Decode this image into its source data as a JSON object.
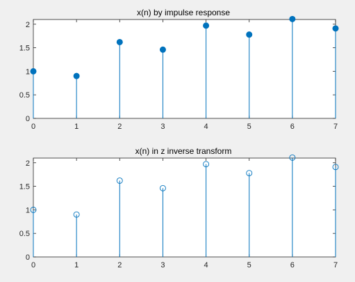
{
  "figure": {
    "background": "#f0f0f0",
    "axes_background": "#ffffff",
    "stem_color": "#0072bd",
    "axis_color": "#262626"
  },
  "chart_data": [
    {
      "type": "stem",
      "title": "x(n) by  impulse response",
      "marker": "filled-circle",
      "x": [
        0,
        1,
        2,
        3,
        4,
        5,
        6,
        7
      ],
      "y": [
        1.0,
        0.9,
        1.62,
        1.46,
        1.97,
        1.78,
        2.11,
        1.91
      ],
      "xlim": [
        0,
        7
      ],
      "ylim": [
        0,
        2.1
      ],
      "xticks": [
        "0",
        "1",
        "2",
        "3",
        "4",
        "5",
        "6",
        "7"
      ],
      "yticks": [
        "0",
        "0.5",
        "1",
        "1.5",
        "2"
      ],
      "ytick_values": [
        0,
        0.5,
        1,
        1.5,
        2
      ],
      "grid": false
    },
    {
      "type": "stem",
      "title": "x(n) in z inverse transform",
      "marker": "open-circle",
      "x": [
        0,
        1,
        2,
        3,
        4,
        5,
        6,
        7
      ],
      "y": [
        1.0,
        0.9,
        1.62,
        1.46,
        1.97,
        1.78,
        2.11,
        1.91
      ],
      "xlim": [
        0,
        7
      ],
      "ylim": [
        0,
        2.1
      ],
      "xticks": [
        "0",
        "1",
        "2",
        "3",
        "4",
        "5",
        "6",
        "7"
      ],
      "yticks": [
        "0",
        "0.5",
        "1",
        "1.5",
        "2"
      ],
      "ytick_values": [
        0,
        0.5,
        1,
        1.5,
        2
      ],
      "grid": false
    }
  ]
}
